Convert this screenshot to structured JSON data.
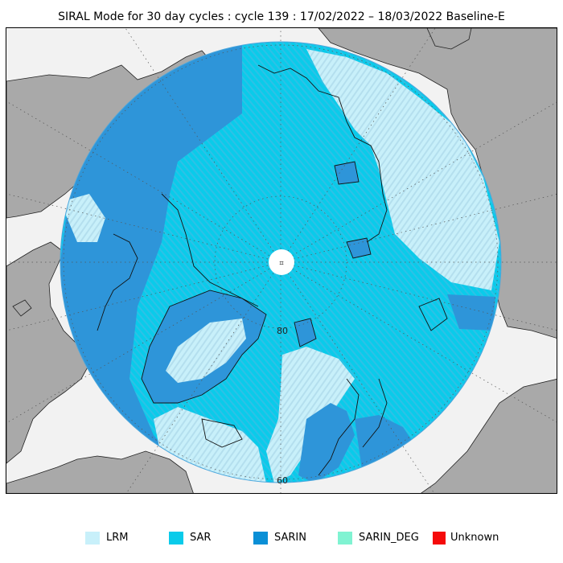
{
  "title": "SIRAL Mode for 30 day cycles : cycle 139 : 17/02/2022 – 18/03/2022 Baseline-E",
  "map": {
    "latitude_labels": [
      "80",
      "60"
    ],
    "pole_marker": "⌗"
  },
  "legend": {
    "items": [
      {
        "label": "LRM",
        "color": "#c8f0fa"
      },
      {
        "label": "SAR",
        "color": "#0acbea"
      },
      {
        "label": "SARIN",
        "color": "#0a8fd6"
      },
      {
        "label": "SARIN_DEG",
        "color": "#80f3d2"
      },
      {
        "label": "Unknown",
        "color": "#f50a0a"
      }
    ]
  },
  "colors": {
    "land": "#a9a9a9",
    "ocean": "#f2f2f2",
    "lrm": "#c8f0fa",
    "sar": "#0acbea",
    "sarin": "#0a8fd6"
  }
}
